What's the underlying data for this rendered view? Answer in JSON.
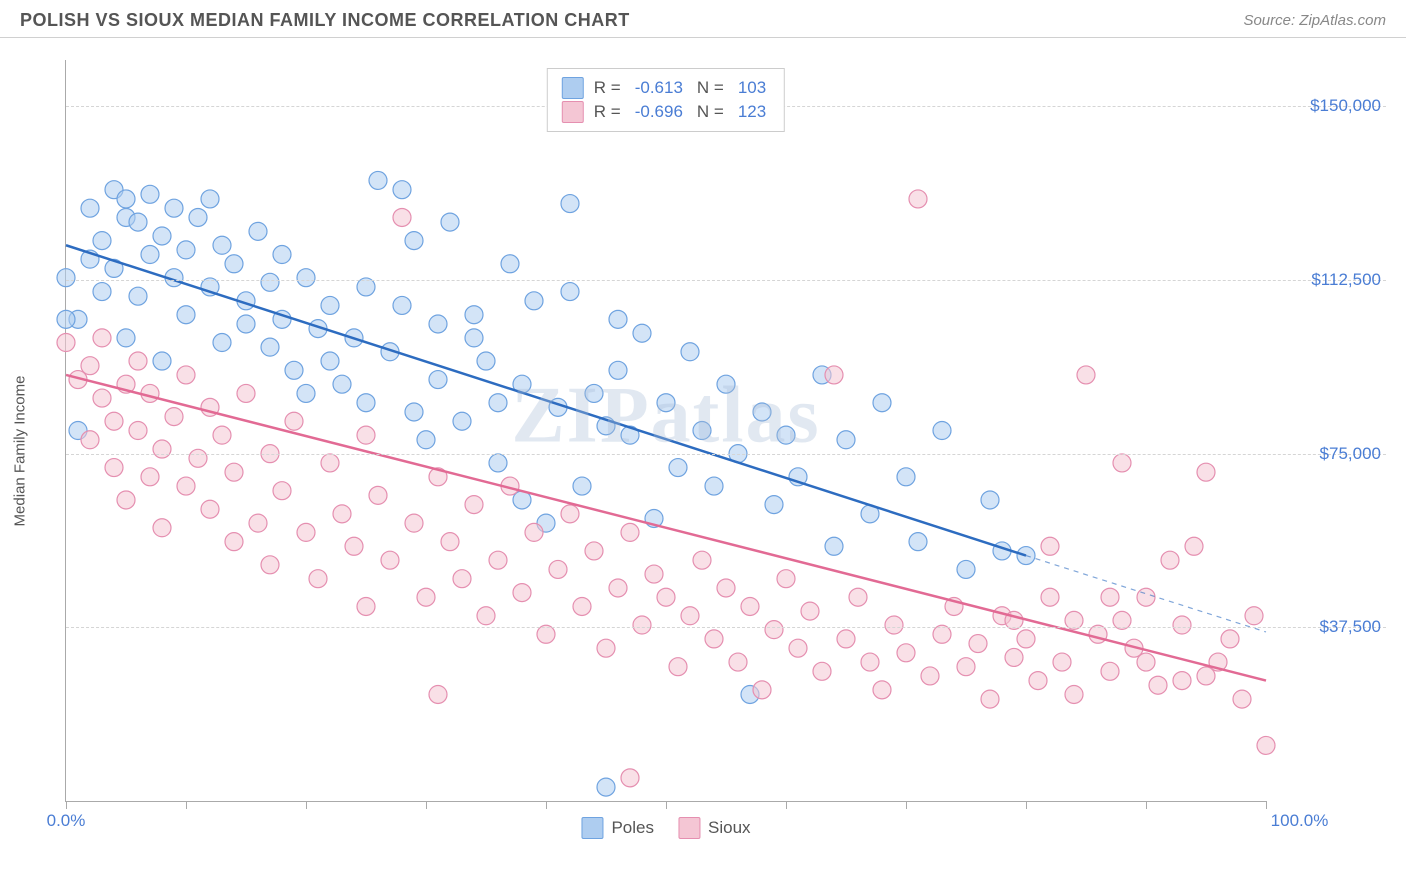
{
  "title": "POLISH VS SIOUX MEDIAN FAMILY INCOME CORRELATION CHART",
  "source": "Source: ZipAtlas.com",
  "watermark": "ZIPatlas",
  "chart": {
    "type": "scatter",
    "y_label": "Median Family Income",
    "background_color": "#ffffff",
    "grid_color": "#d5d5d5",
    "axis_color": "#aaaaaa",
    "tick_label_color": "#4a7dd4",
    "tick_fontsize": 17,
    "xlim": [
      0,
      100
    ],
    "ylim": [
      0,
      160000
    ],
    "x_ticks": [
      0,
      10,
      20,
      30,
      40,
      50,
      60,
      70,
      80,
      90,
      100
    ],
    "x_tick_labels": {
      "0": "0.0%",
      "100": "100.0%"
    },
    "y_grid": [
      37500,
      75000,
      112500,
      150000
    ],
    "y_tick_labels": [
      "$37,500",
      "$75,000",
      "$112,500",
      "$150,000"
    ],
    "stats_box": {
      "rows": [
        {
          "swatch_fill": "#aecdf0",
          "swatch_border": "#6fa3e0",
          "r_label": "R =",
          "r_val": "-0.613",
          "n_label": "N =",
          "n_val": "103"
        },
        {
          "swatch_fill": "#f4c6d4",
          "swatch_border": "#e58fb0",
          "r_label": "R =",
          "r_val": "-0.696",
          "n_label": "N =",
          "n_val": "123"
        }
      ]
    },
    "bottom_legend": [
      {
        "swatch_fill": "#aecdf0",
        "swatch_border": "#6fa3e0",
        "label": "Poles"
      },
      {
        "swatch_fill": "#f4c6d4",
        "swatch_border": "#e58fb0",
        "label": "Sioux"
      }
    ],
    "series": [
      {
        "name": "Poles",
        "marker_fill": "rgba(174,205,240,0.55)",
        "marker_stroke": "#6fa3e0",
        "marker_r": 9,
        "trend": {
          "x1": 0,
          "y1": 120000,
          "x2": 80,
          "y2": 53000,
          "solid_color": "#2d6cc0",
          "dash_extend_x": 100,
          "dash_extend_y": 36500,
          "width": 2.5
        },
        "points": [
          [
            1,
            104000
          ],
          [
            2,
            117000
          ],
          [
            2,
            128000
          ],
          [
            3,
            110000
          ],
          [
            3,
            121000
          ],
          [
            4,
            132000
          ],
          [
            4,
            115000
          ],
          [
            5,
            126000
          ],
          [
            5,
            100000
          ],
          [
            5,
            130000
          ],
          [
            6,
            109000
          ],
          [
            6,
            125000
          ],
          [
            7,
            131000
          ],
          [
            7,
            118000
          ],
          [
            8,
            95000
          ],
          [
            8,
            122000
          ],
          [
            9,
            128000
          ],
          [
            9,
            113000
          ],
          [
            10,
            119000
          ],
          [
            10,
            105000
          ],
          [
            11,
            126000
          ],
          [
            12,
            111000
          ],
          [
            12,
            130000
          ],
          [
            13,
            99000
          ],
          [
            13,
            120000
          ],
          [
            14,
            116000
          ],
          [
            15,
            108000
          ],
          [
            15,
            103000
          ],
          [
            16,
            123000
          ],
          [
            17,
            112000
          ],
          [
            17,
            98000
          ],
          [
            18,
            104000
          ],
          [
            18,
            118000
          ],
          [
            19,
            93000
          ],
          [
            20,
            113000
          ],
          [
            20,
            88000
          ],
          [
            21,
            102000
          ],
          [
            22,
            107000
          ],
          [
            22,
            95000
          ],
          [
            23,
            90000
          ],
          [
            24,
            100000
          ],
          [
            25,
            111000
          ],
          [
            25,
            86000
          ],
          [
            26,
            134000
          ],
          [
            27,
            97000
          ],
          [
            28,
            132000
          ],
          [
            28,
            107000
          ],
          [
            29,
            84000
          ],
          [
            29,
            121000
          ],
          [
            30,
            78000
          ],
          [
            31,
            103000
          ],
          [
            31,
            91000
          ],
          [
            32,
            125000
          ],
          [
            33,
            82000
          ],
          [
            34,
            100000
          ],
          [
            34,
            105000
          ],
          [
            35,
            95000
          ],
          [
            36,
            86000
          ],
          [
            36,
            73000
          ],
          [
            37,
            116000
          ],
          [
            38,
            90000
          ],
          [
            38,
            65000
          ],
          [
            39,
            108000
          ],
          [
            40,
            60000
          ],
          [
            41,
            85000
          ],
          [
            42,
            110000
          ],
          [
            42,
            129000
          ],
          [
            43,
            68000
          ],
          [
            44,
            88000
          ],
          [
            45,
            81000
          ],
          [
            46,
            93000
          ],
          [
            46,
            104000
          ],
          [
            47,
            79000
          ],
          [
            48,
            101000
          ],
          [
            49,
            61000
          ],
          [
            50,
            86000
          ],
          [
            51,
            72000
          ],
          [
            52,
            97000
          ],
          [
            53,
            80000
          ],
          [
            54,
            68000
          ],
          [
            55,
            90000
          ],
          [
            56,
            75000
          ],
          [
            57,
            23000
          ],
          [
            58,
            84000
          ],
          [
            59,
            64000
          ],
          [
            60,
            79000
          ],
          [
            61,
            70000
          ],
          [
            63,
            92000
          ],
          [
            64,
            55000
          ],
          [
            65,
            78000
          ],
          [
            67,
            62000
          ],
          [
            68,
            86000
          ],
          [
            70,
            70000
          ],
          [
            71,
            56000
          ],
          [
            73,
            80000
          ],
          [
            75,
            50000
          ],
          [
            77,
            65000
          ],
          [
            78,
            54000
          ],
          [
            80,
            53000
          ],
          [
            1,
            80000
          ],
          [
            0,
            104000
          ],
          [
            0,
            113000
          ],
          [
            45,
            3000
          ]
        ]
      },
      {
        "name": "Sioux",
        "marker_fill": "rgba(244,198,212,0.55)",
        "marker_stroke": "#e58fb0",
        "marker_r": 9,
        "trend": {
          "x1": 0,
          "y1": 92000,
          "x2": 100,
          "y2": 26000,
          "solid_color": "#e26a94",
          "width": 2.5
        },
        "points": [
          [
            0,
            99000
          ],
          [
            1,
            91000
          ],
          [
            2,
            94000
          ],
          [
            2,
            78000
          ],
          [
            3,
            100000
          ],
          [
            3,
            87000
          ],
          [
            4,
            82000
          ],
          [
            4,
            72000
          ],
          [
            5,
            90000
          ],
          [
            5,
            65000
          ],
          [
            6,
            95000
          ],
          [
            6,
            80000
          ],
          [
            7,
            88000
          ],
          [
            7,
            70000
          ],
          [
            8,
            76000
          ],
          [
            8,
            59000
          ],
          [
            9,
            83000
          ],
          [
            10,
            92000
          ],
          [
            10,
            68000
          ],
          [
            11,
            74000
          ],
          [
            12,
            85000
          ],
          [
            12,
            63000
          ],
          [
            13,
            79000
          ],
          [
            14,
            56000
          ],
          [
            14,
            71000
          ],
          [
            15,
            88000
          ],
          [
            16,
            60000
          ],
          [
            17,
            75000
          ],
          [
            17,
            51000
          ],
          [
            18,
            67000
          ],
          [
            19,
            82000
          ],
          [
            20,
            58000
          ],
          [
            21,
            48000
          ],
          [
            22,
            73000
          ],
          [
            23,
            62000
          ],
          [
            24,
            55000
          ],
          [
            25,
            79000
          ],
          [
            25,
            42000
          ],
          [
            26,
            66000
          ],
          [
            27,
            52000
          ],
          [
            28,
            126000
          ],
          [
            29,
            60000
          ],
          [
            30,
            44000
          ],
          [
            31,
            70000
          ],
          [
            31,
            23000
          ],
          [
            32,
            56000
          ],
          [
            33,
            48000
          ],
          [
            34,
            64000
          ],
          [
            35,
            40000
          ],
          [
            36,
            52000
          ],
          [
            37,
            68000
          ],
          [
            38,
            45000
          ],
          [
            39,
            58000
          ],
          [
            40,
            36000
          ],
          [
            41,
            50000
          ],
          [
            42,
            62000
          ],
          [
            43,
            42000
          ],
          [
            44,
            54000
          ],
          [
            45,
            33000
          ],
          [
            46,
            46000
          ],
          [
            47,
            58000
          ],
          [
            47,
            5000
          ],
          [
            48,
            38000
          ],
          [
            49,
            49000
          ],
          [
            50,
            44000
          ],
          [
            51,
            29000
          ],
          [
            52,
            40000
          ],
          [
            53,
            52000
          ],
          [
            54,
            35000
          ],
          [
            55,
            46000
          ],
          [
            56,
            30000
          ],
          [
            57,
            42000
          ],
          [
            58,
            24000
          ],
          [
            59,
            37000
          ],
          [
            60,
            48000
          ],
          [
            61,
            33000
          ],
          [
            62,
            41000
          ],
          [
            63,
            28000
          ],
          [
            64,
            92000
          ],
          [
            65,
            35000
          ],
          [
            66,
            44000
          ],
          [
            67,
            30000
          ],
          [
            68,
            24000
          ],
          [
            69,
            38000
          ],
          [
            70,
            32000
          ],
          [
            71,
            130000
          ],
          [
            72,
            27000
          ],
          [
            73,
            36000
          ],
          [
            74,
            42000
          ],
          [
            75,
            29000
          ],
          [
            76,
            34000
          ],
          [
            77,
            22000
          ],
          [
            78,
            40000
          ],
          [
            79,
            31000
          ],
          [
            80,
            35000
          ],
          [
            81,
            26000
          ],
          [
            82,
            44000
          ],
          [
            83,
            30000
          ],
          [
            84,
            23000
          ],
          [
            85,
            92000
          ],
          [
            86,
            36000
          ],
          [
            87,
            28000
          ],
          [
            88,
            73000
          ],
          [
            89,
            33000
          ],
          [
            90,
            44000
          ],
          [
            91,
            25000
          ],
          [
            92,
            52000
          ],
          [
            93,
            38000
          ],
          [
            94,
            55000
          ],
          [
            95,
            27000
          ],
          [
            96,
            30000
          ],
          [
            97,
            35000
          ],
          [
            98,
            22000
          ],
          [
            99,
            40000
          ],
          [
            100,
            12000
          ],
          [
            88,
            39000
          ],
          [
            90,
            30000
          ],
          [
            93,
            26000
          ],
          [
            95,
            71000
          ],
          [
            84,
            39000
          ],
          [
            87,
            44000
          ],
          [
            82,
            55000
          ],
          [
            79,
            39000
          ]
        ]
      }
    ]
  }
}
